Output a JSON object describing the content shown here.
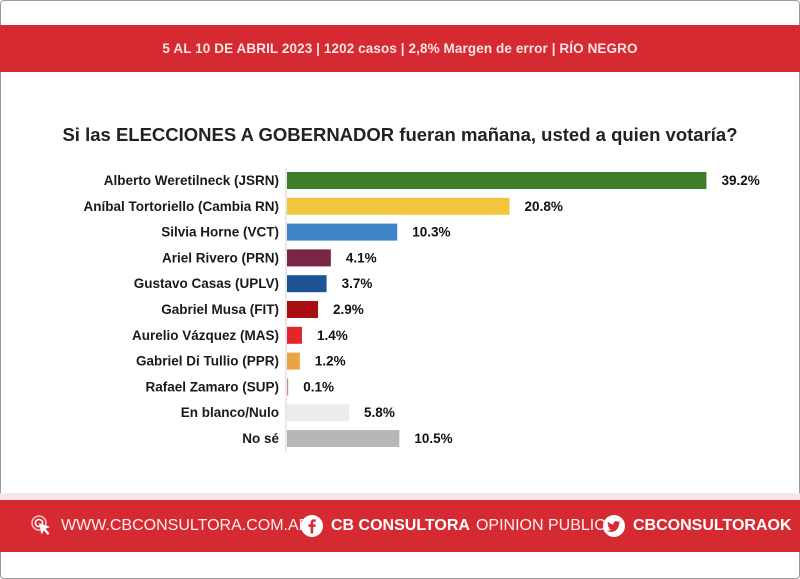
{
  "header": {
    "info": "5 AL 10 DE ABRIL 2023 | 1202 casos  |  2,8% Margen de error  | RÍO NEGRO"
  },
  "question": "Si las ELECCIONES A GOBERNADOR fueran mañana, usted a quien votaría?",
  "chart_data": {
    "type": "bar",
    "orientation": "horizontal",
    "categories": [
      "Alberto Weretilneck (JSRN)",
      "Aníbal Tortoriello (Cambia RN)",
      "Silvia Horne (VCT)",
      "Ariel Rivero (PRN)",
      "Gustavo Casas (UPLV)",
      "Gabriel Musa (FIT)",
      "Aurelio Vázquez (MAS)",
      "Gabriel Di Tullio (PPR)",
      "Rafael Zamaro (SUP)",
      "En blanco/Nulo",
      "No sé"
    ],
    "values": [
      39.2,
      20.8,
      10.3,
      4.1,
      3.7,
      2.9,
      1.4,
      1.2,
      0.1,
      5.8,
      10.5
    ],
    "value_labels": [
      "39.2%",
      "20.8%",
      "10.3%",
      "4.1%",
      "3.7%",
      "2.9%",
      "1.4%",
      "1.2%",
      "0.1%",
      "5.8%",
      "10.5%"
    ],
    "colors": [
      "#3e7d2a",
      "#f2c63c",
      "#3d84c9",
      "#7b2547",
      "#1c5496",
      "#a80f12",
      "#e2262a",
      "#e9a545",
      "#c98a8a",
      "#ececec",
      "#b7b7b7"
    ],
    "title": "",
    "xlabel": "",
    "ylabel": "",
    "grid": false,
    "legend": "none"
  },
  "footer": {
    "website": "WWW.CBCONSULTORA.COM.AR",
    "facebook_bold": "CB CONSULTORA",
    "facebook_light": "OPINION PUBLICA",
    "twitter": "CBCONSULTORAOK"
  },
  "icons": {
    "website": "cursor-click-icon",
    "facebook": "facebook-icon",
    "twitter": "twitter-icon"
  },
  "colors": {
    "brand_red": "#d62a33"
  }
}
